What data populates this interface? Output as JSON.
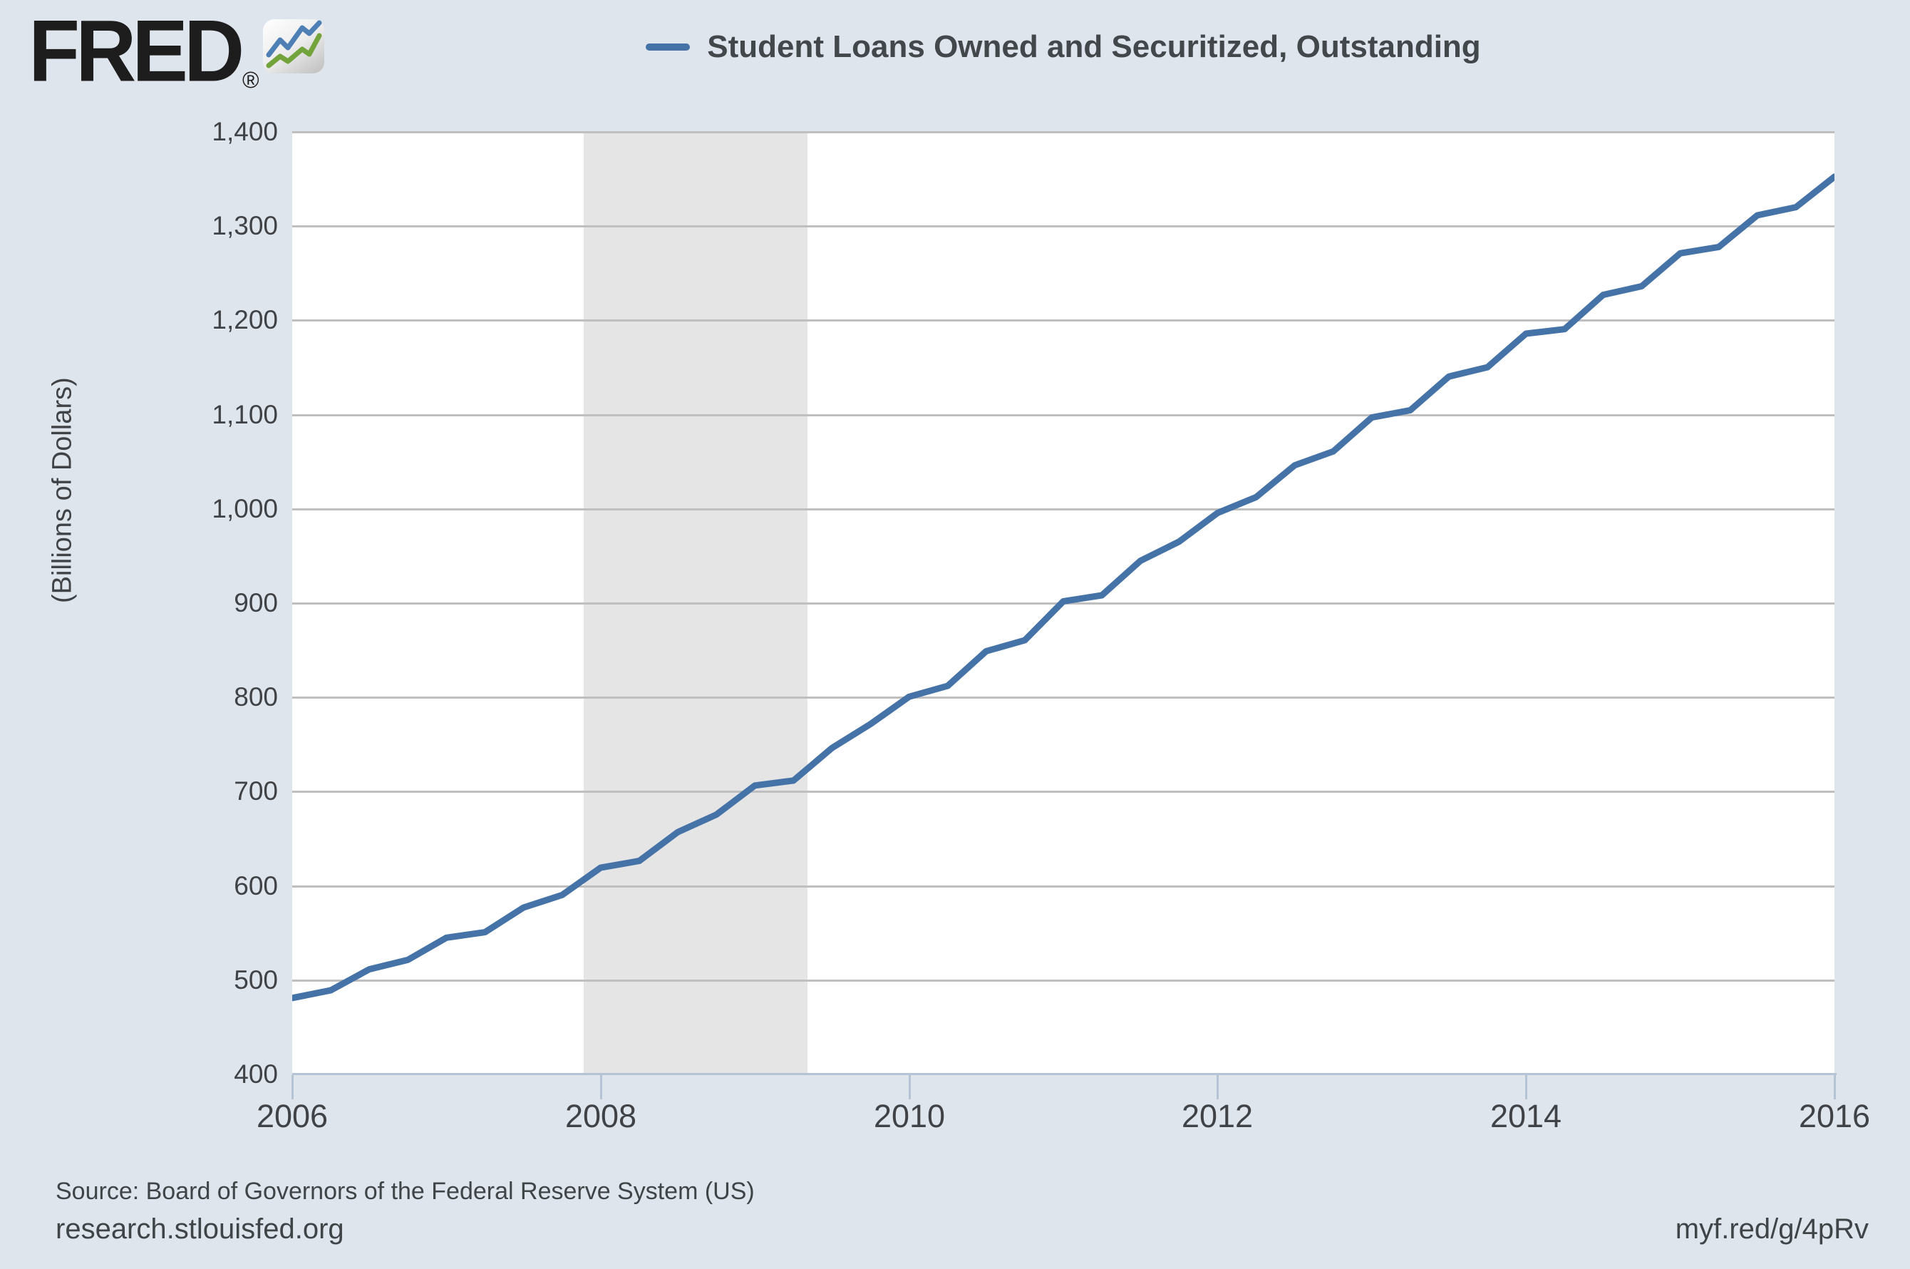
{
  "branding": {
    "logo_text": "FRED",
    "registered_mark": "®"
  },
  "legend": {
    "label": "Student Loans Owned and Securitized, Outstanding"
  },
  "footer": {
    "source": "Source: Board of Governors of the Federal Reserve System (US)",
    "site": "research.stlouisfed.org",
    "short_url": "myf.red/g/4pRv"
  },
  "colors": {
    "background": "#dfe5ed",
    "plot_background": "#ffffff",
    "line": "#4572a7",
    "gridline": "#bfbfbf",
    "axis": "#b5c4d4",
    "recession_band": "#e5e5e5",
    "logo_icon_blue": "#4e7fb5",
    "logo_icon_green": "#73a43c"
  },
  "chart_data": {
    "type": "line",
    "title": "Student Loans Owned and Securitized, Outstanding",
    "xlabel": "",
    "ylabel": "(Billions of Dollars)",
    "xlim": [
      2006,
      2016
    ],
    "ylim": [
      400,
      1400
    ],
    "grid": true,
    "legend_position": "top-center",
    "x_ticks": {
      "values": [
        2006,
        2008,
        2010,
        2012,
        2014,
        2016
      ],
      "labels": [
        "2006",
        "2008",
        "2010",
        "2012",
        "2014",
        "2016"
      ]
    },
    "y_ticks": {
      "values": [
        400,
        500,
        600,
        700,
        800,
        900,
        1000,
        1100,
        1200,
        1300,
        1400
      ],
      "labels": [
        "400",
        "500",
        "600",
        "700",
        "800",
        "900",
        "1,000",
        "1,100",
        "1,200",
        "1,300",
        "1,400"
      ]
    },
    "recession_band": {
      "x_start": 2007.89,
      "x_end": 2009.34
    },
    "series": [
      {
        "name": "Student Loans Owned and Securitized, Outstanding",
        "units": "Billions of Dollars",
        "frequency": "quarterly",
        "x": [
          2006,
          2006.25,
          2006.5,
          2006.75,
          2007,
          2007.25,
          2007.5,
          2007.75,
          2008,
          2008.25,
          2008.5,
          2008.75,
          2009,
          2009.25,
          2009.5,
          2009.75,
          2010,
          2010.25,
          2010.5,
          2010.75,
          2011,
          2011.25,
          2011.5,
          2011.75,
          2012,
          2012.25,
          2012.5,
          2012.75,
          2013,
          2013.25,
          2013.5,
          2013.75,
          2014,
          2014.25,
          2014.5,
          2014.75,
          2015,
          2015.25,
          2015.5,
          2015.75,
          2016
        ],
        "values": [
          481.0,
          489.2,
          511.5,
          521.5,
          545.0,
          550.8,
          577.0,
          590.3,
          619.3,
          626.5,
          657.0,
          675.6,
          706.5,
          711.7,
          746.3,
          771.7,
          800.7,
          812.2,
          849.0,
          860.6,
          902.0,
          908.3,
          944.9,
          965.2,
          995.7,
          1012.5,
          1046.2,
          1061.0,
          1097.0,
          1104.7,
          1140.4,
          1150.3,
          1185.9,
          1190.7,
          1227.1,
          1236.2,
          1271.2,
          1277.9,
          1311.5,
          1320.1,
          1352.4
        ]
      }
    ]
  }
}
